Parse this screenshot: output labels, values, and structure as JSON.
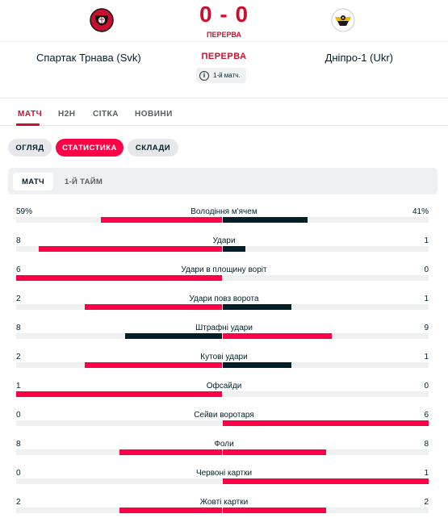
{
  "match": {
    "score": "0 - 0",
    "status_small": "ПЕРЕРВА",
    "status": "ПЕРЕРВА",
    "info": "1-й матч.",
    "home_team": "Спартак Трнава (Svk)",
    "away_team": "Дніпро-1 (Ukr)",
    "home_colors": {
      "primary": "#c8102e",
      "secondary": "#111111"
    },
    "away_colors": {
      "primary": "#1a1a1a",
      "secondary": "#f2b705"
    }
  },
  "tabs": [
    {
      "label": "МАТЧ",
      "active": true
    },
    {
      "label": "H2H",
      "active": false
    },
    {
      "label": "СІТКА",
      "active": false
    },
    {
      "label": "НОВИНИ",
      "active": false
    }
  ],
  "subtabs": [
    {
      "label": "ОГЛЯД",
      "active": false
    },
    {
      "label": "СТАТИСТИКА",
      "active": true
    },
    {
      "label": "СКЛАДИ",
      "active": false
    }
  ],
  "periods": [
    {
      "label": "МАТЧ",
      "active": true
    },
    {
      "label": "1-Й ТАЙМ",
      "active": false
    }
  ],
  "colors": {
    "accent": "#ff0046",
    "dark": "#001e28",
    "track": "#eef0f2",
    "status": "#c8102e"
  },
  "stats": [
    {
      "label": "Володіння м'ячем",
      "home": "59%",
      "away": "41%",
      "home_share": 0.59,
      "away_share": 0.41
    },
    {
      "label": "Удари",
      "home": "8",
      "away": "1",
      "home_share": 0.889,
      "away_share": 0.111
    },
    {
      "label": "Удари в площину воріт",
      "home": "6",
      "away": "0",
      "home_share": 1.0,
      "away_share": 0.0
    },
    {
      "label": "Удари повз ворота",
      "home": "2",
      "away": "1",
      "home_share": 0.667,
      "away_share": 0.333
    },
    {
      "label": "Штрафні удари",
      "home": "8",
      "away": "9",
      "home_share": 0.471,
      "away_share": 0.529
    },
    {
      "label": "Кутові удари",
      "home": "2",
      "away": "1",
      "home_share": 0.667,
      "away_share": 0.333
    },
    {
      "label": "Офсайди",
      "home": "1",
      "away": "0",
      "home_share": 1.0,
      "away_share": 0.0
    },
    {
      "label": "Сейви воротаря",
      "home": "0",
      "away": "6",
      "home_share": 0.0,
      "away_share": 1.0
    },
    {
      "label": "Фоли",
      "home": "8",
      "away": "8",
      "home_share": 0.5,
      "away_share": 0.5
    },
    {
      "label": "Червоні картки",
      "home": "0",
      "away": "1",
      "home_share": 0.0,
      "away_share": 1.0
    },
    {
      "label": "Жовті картки",
      "home": "2",
      "away": "2",
      "home_share": 0.5,
      "away_share": 0.5
    }
  ]
}
